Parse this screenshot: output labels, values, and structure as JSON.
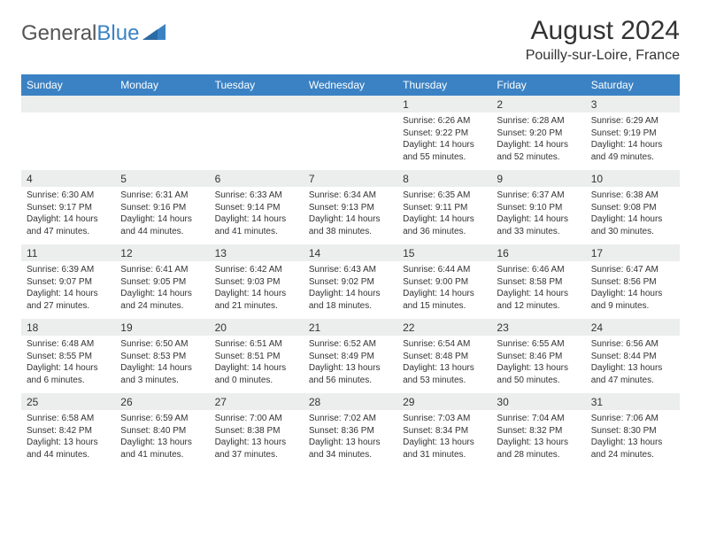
{
  "logo": {
    "text1": "General",
    "text2": "Blue"
  },
  "title": "August 2024",
  "location": "Pouilly-sur-Loire, France",
  "colors": {
    "header_bg": "#3b82c4",
    "daynum_bg": "#eceded",
    "row_border": "#3b82c4",
    "text": "#333333",
    "background": "#ffffff"
  },
  "fonts": {
    "title_size_pt": 30,
    "location_size_pt": 16,
    "header_size_pt": 12,
    "daynum_size_pt": 12,
    "body_size_pt": 10
  },
  "day_headers": [
    "Sunday",
    "Monday",
    "Tuesday",
    "Wednesday",
    "Thursday",
    "Friday",
    "Saturday"
  ],
  "weeks": [
    [
      null,
      null,
      null,
      null,
      {
        "n": "1",
        "sr": "Sunrise: 6:26 AM",
        "ss": "Sunset: 9:22 PM",
        "d1": "Daylight: 14 hours",
        "d2": "and 55 minutes."
      },
      {
        "n": "2",
        "sr": "Sunrise: 6:28 AM",
        "ss": "Sunset: 9:20 PM",
        "d1": "Daylight: 14 hours",
        "d2": "and 52 minutes."
      },
      {
        "n": "3",
        "sr": "Sunrise: 6:29 AM",
        "ss": "Sunset: 9:19 PM",
        "d1": "Daylight: 14 hours",
        "d2": "and 49 minutes."
      }
    ],
    [
      {
        "n": "4",
        "sr": "Sunrise: 6:30 AM",
        "ss": "Sunset: 9:17 PM",
        "d1": "Daylight: 14 hours",
        "d2": "and 47 minutes."
      },
      {
        "n": "5",
        "sr": "Sunrise: 6:31 AM",
        "ss": "Sunset: 9:16 PM",
        "d1": "Daylight: 14 hours",
        "d2": "and 44 minutes."
      },
      {
        "n": "6",
        "sr": "Sunrise: 6:33 AM",
        "ss": "Sunset: 9:14 PM",
        "d1": "Daylight: 14 hours",
        "d2": "and 41 minutes."
      },
      {
        "n": "7",
        "sr": "Sunrise: 6:34 AM",
        "ss": "Sunset: 9:13 PM",
        "d1": "Daylight: 14 hours",
        "d2": "and 38 minutes."
      },
      {
        "n": "8",
        "sr": "Sunrise: 6:35 AM",
        "ss": "Sunset: 9:11 PM",
        "d1": "Daylight: 14 hours",
        "d2": "and 36 minutes."
      },
      {
        "n": "9",
        "sr": "Sunrise: 6:37 AM",
        "ss": "Sunset: 9:10 PM",
        "d1": "Daylight: 14 hours",
        "d2": "and 33 minutes."
      },
      {
        "n": "10",
        "sr": "Sunrise: 6:38 AM",
        "ss": "Sunset: 9:08 PM",
        "d1": "Daylight: 14 hours",
        "d2": "and 30 minutes."
      }
    ],
    [
      {
        "n": "11",
        "sr": "Sunrise: 6:39 AM",
        "ss": "Sunset: 9:07 PM",
        "d1": "Daylight: 14 hours",
        "d2": "and 27 minutes."
      },
      {
        "n": "12",
        "sr": "Sunrise: 6:41 AM",
        "ss": "Sunset: 9:05 PM",
        "d1": "Daylight: 14 hours",
        "d2": "and 24 minutes."
      },
      {
        "n": "13",
        "sr": "Sunrise: 6:42 AM",
        "ss": "Sunset: 9:03 PM",
        "d1": "Daylight: 14 hours",
        "d2": "and 21 minutes."
      },
      {
        "n": "14",
        "sr": "Sunrise: 6:43 AM",
        "ss": "Sunset: 9:02 PM",
        "d1": "Daylight: 14 hours",
        "d2": "and 18 minutes."
      },
      {
        "n": "15",
        "sr": "Sunrise: 6:44 AM",
        "ss": "Sunset: 9:00 PM",
        "d1": "Daylight: 14 hours",
        "d2": "and 15 minutes."
      },
      {
        "n": "16",
        "sr": "Sunrise: 6:46 AM",
        "ss": "Sunset: 8:58 PM",
        "d1": "Daylight: 14 hours",
        "d2": "and 12 minutes."
      },
      {
        "n": "17",
        "sr": "Sunrise: 6:47 AM",
        "ss": "Sunset: 8:56 PM",
        "d1": "Daylight: 14 hours",
        "d2": "and 9 minutes."
      }
    ],
    [
      {
        "n": "18",
        "sr": "Sunrise: 6:48 AM",
        "ss": "Sunset: 8:55 PM",
        "d1": "Daylight: 14 hours",
        "d2": "and 6 minutes."
      },
      {
        "n": "19",
        "sr": "Sunrise: 6:50 AM",
        "ss": "Sunset: 8:53 PM",
        "d1": "Daylight: 14 hours",
        "d2": "and 3 minutes."
      },
      {
        "n": "20",
        "sr": "Sunrise: 6:51 AM",
        "ss": "Sunset: 8:51 PM",
        "d1": "Daylight: 14 hours",
        "d2": "and 0 minutes."
      },
      {
        "n": "21",
        "sr": "Sunrise: 6:52 AM",
        "ss": "Sunset: 8:49 PM",
        "d1": "Daylight: 13 hours",
        "d2": "and 56 minutes."
      },
      {
        "n": "22",
        "sr": "Sunrise: 6:54 AM",
        "ss": "Sunset: 8:48 PM",
        "d1": "Daylight: 13 hours",
        "d2": "and 53 minutes."
      },
      {
        "n": "23",
        "sr": "Sunrise: 6:55 AM",
        "ss": "Sunset: 8:46 PM",
        "d1": "Daylight: 13 hours",
        "d2": "and 50 minutes."
      },
      {
        "n": "24",
        "sr": "Sunrise: 6:56 AM",
        "ss": "Sunset: 8:44 PM",
        "d1": "Daylight: 13 hours",
        "d2": "and 47 minutes."
      }
    ],
    [
      {
        "n": "25",
        "sr": "Sunrise: 6:58 AM",
        "ss": "Sunset: 8:42 PM",
        "d1": "Daylight: 13 hours",
        "d2": "and 44 minutes."
      },
      {
        "n": "26",
        "sr": "Sunrise: 6:59 AM",
        "ss": "Sunset: 8:40 PM",
        "d1": "Daylight: 13 hours",
        "d2": "and 41 minutes."
      },
      {
        "n": "27",
        "sr": "Sunrise: 7:00 AM",
        "ss": "Sunset: 8:38 PM",
        "d1": "Daylight: 13 hours",
        "d2": "and 37 minutes."
      },
      {
        "n": "28",
        "sr": "Sunrise: 7:02 AM",
        "ss": "Sunset: 8:36 PM",
        "d1": "Daylight: 13 hours",
        "d2": "and 34 minutes."
      },
      {
        "n": "29",
        "sr": "Sunrise: 7:03 AM",
        "ss": "Sunset: 8:34 PM",
        "d1": "Daylight: 13 hours",
        "d2": "and 31 minutes."
      },
      {
        "n": "30",
        "sr": "Sunrise: 7:04 AM",
        "ss": "Sunset: 8:32 PM",
        "d1": "Daylight: 13 hours",
        "d2": "and 28 minutes."
      },
      {
        "n": "31",
        "sr": "Sunrise: 7:06 AM",
        "ss": "Sunset: 8:30 PM",
        "d1": "Daylight: 13 hours",
        "d2": "and 24 minutes."
      }
    ]
  ]
}
